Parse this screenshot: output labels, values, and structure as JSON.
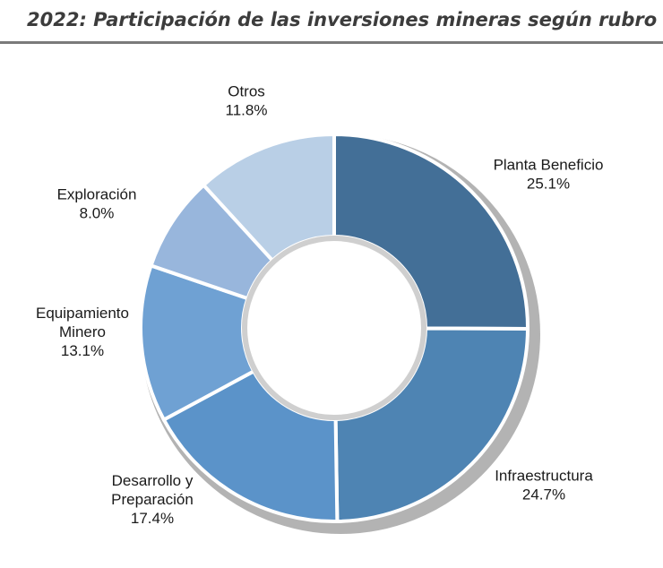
{
  "chart_data": {
    "type": "pie",
    "title": "2022: Participación de las inversiones mineras según rubro",
    "donut": true,
    "slices": [
      {
        "label": [
          "Planta Beneficio"
        ],
        "value": 25.1,
        "value_label": "25.1%",
        "color": "#436f97"
      },
      {
        "label": [
          "Infraestructura"
        ],
        "value": 24.7,
        "value_label": "24.7%",
        "color": "#4e84b3"
      },
      {
        "label": [
          "Desarrollo y",
          "Preparación"
        ],
        "value": 17.4,
        "value_label": "17.4%",
        "color": "#5b93c9"
      },
      {
        "label": [
          "Equipamiento",
          "Minero"
        ],
        "value": 13.1,
        "value_label": "13.1%",
        "color": "#6fa1d3"
      },
      {
        "label": [
          "Exploración"
        ],
        "value": 8.0,
        "value_label": "8.0%",
        "color": "#98b6dc"
      },
      {
        "label": [
          "Otros"
        ],
        "value": 11.8,
        "value_label": "11.8%",
        "color": "#b9cfe6"
      }
    ]
  }
}
